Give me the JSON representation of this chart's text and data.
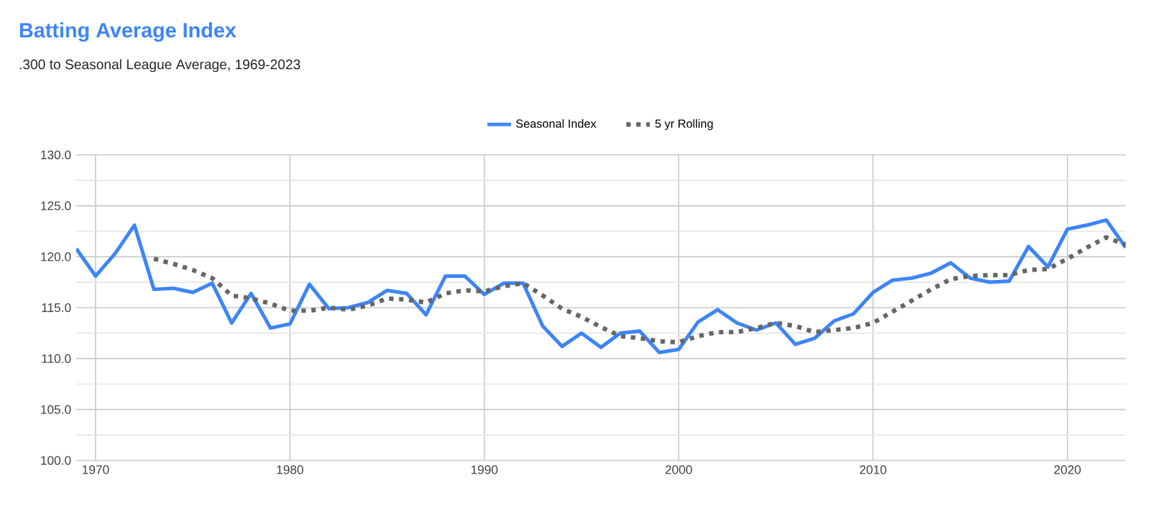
{
  "chart_data": {
    "type": "line",
    "title": "Batting Average Index",
    "subtitle": ".300 to Seasonal League Average, 1969-2023",
    "xlim": [
      1969,
      2023
    ],
    "xticks": [
      1970,
      1980,
      1990,
      2000,
      2010,
      2020
    ],
    "ylim": [
      100,
      130
    ],
    "yticks": [
      {
        "value": 100,
        "label": "100.0"
      },
      {
        "value": 105,
        "label": "105.0"
      },
      {
        "value": 110,
        "label": "110.0"
      },
      {
        "value": 115,
        "label": "115.0"
      },
      {
        "value": 120,
        "label": "120.0"
      },
      {
        "value": 125,
        "label": "125.0"
      },
      {
        "value": 130,
        "label": "130.0"
      }
    ],
    "grid": true,
    "legend": "top",
    "marker": "none",
    "series": [
      {
        "name": "Seasonal Index",
        "color": "#3d85f6",
        "line_style": "solid",
        "x": [
          1969,
          1970,
          1971,
          1972,
          1973,
          1974,
          1975,
          1976,
          1977,
          1978,
          1979,
          1980,
          1981,
          1982,
          1983,
          1984,
          1985,
          1986,
          1987,
          1988,
          1989,
          1990,
          1991,
          1992,
          1993,
          1994,
          1995,
          1996,
          1997,
          1998,
          1999,
          2000,
          2001,
          2002,
          2003,
          2004,
          2005,
          2006,
          2007,
          2008,
          2009,
          2010,
          2011,
          2012,
          2013,
          2014,
          2015,
          2016,
          2017,
          2018,
          2019,
          2020,
          2021,
          2022,
          2023
        ],
        "values": [
          120.8,
          118.1,
          120.3,
          123.1,
          116.8,
          116.9,
          116.5,
          117.4,
          113.5,
          116.4,
          113.0,
          113.4,
          117.3,
          114.9,
          115.0,
          115.5,
          116.7,
          116.4,
          114.3,
          118.1,
          118.1,
          116.3,
          117.4,
          117.4,
          113.2,
          111.2,
          112.5,
          111.1,
          112.5,
          112.7,
          110.6,
          110.9,
          113.6,
          114.8,
          113.5,
          112.8,
          113.5,
          111.4,
          112.0,
          113.7,
          114.4,
          116.5,
          117.7,
          117.9,
          118.4,
          119.4,
          117.9,
          117.5,
          117.6,
          121.0,
          119.0,
          122.7,
          123.1,
          123.6,
          120.9
        ]
      },
      {
        "name": "5 yr Rolling",
        "color": "#666666",
        "line_style": "dotted",
        "x": [
          1973,
          1974,
          1975,
          1976,
          1977,
          1978,
          1979,
          1980,
          1981,
          1982,
          1983,
          1984,
          1985,
          1986,
          1987,
          1988,
          1989,
          1990,
          1991,
          1992,
          1993,
          1994,
          1995,
          1996,
          1997,
          1998,
          1999,
          2000,
          2001,
          2002,
          2003,
          2004,
          2005,
          2006,
          2007,
          2008,
          2009,
          2010,
          2011,
          2012,
          2013,
          2014,
          2015,
          2016,
          2017,
          2018,
          2019,
          2020,
          2021,
          2022,
          2023
        ],
        "values": [
          119.8,
          119.3,
          118.7,
          117.9,
          116.2,
          115.9,
          115.4,
          114.7,
          114.7,
          115.0,
          114.8,
          115.2,
          115.9,
          115.8,
          115.5,
          116.4,
          116.7,
          116.6,
          117.1,
          117.4,
          116.2,
          114.9,
          114.1,
          113.1,
          112.2,
          112.0,
          111.7,
          111.6,
          112.2,
          112.6,
          112.6,
          113.0,
          113.5,
          113.2,
          112.6,
          112.8,
          113.0,
          113.5,
          114.6,
          115.7,
          116.8,
          117.8,
          118.1,
          118.2,
          118.2,
          118.7,
          118.8,
          119.8,
          120.9,
          121.9,
          121.2
        ]
      }
    ]
  }
}
